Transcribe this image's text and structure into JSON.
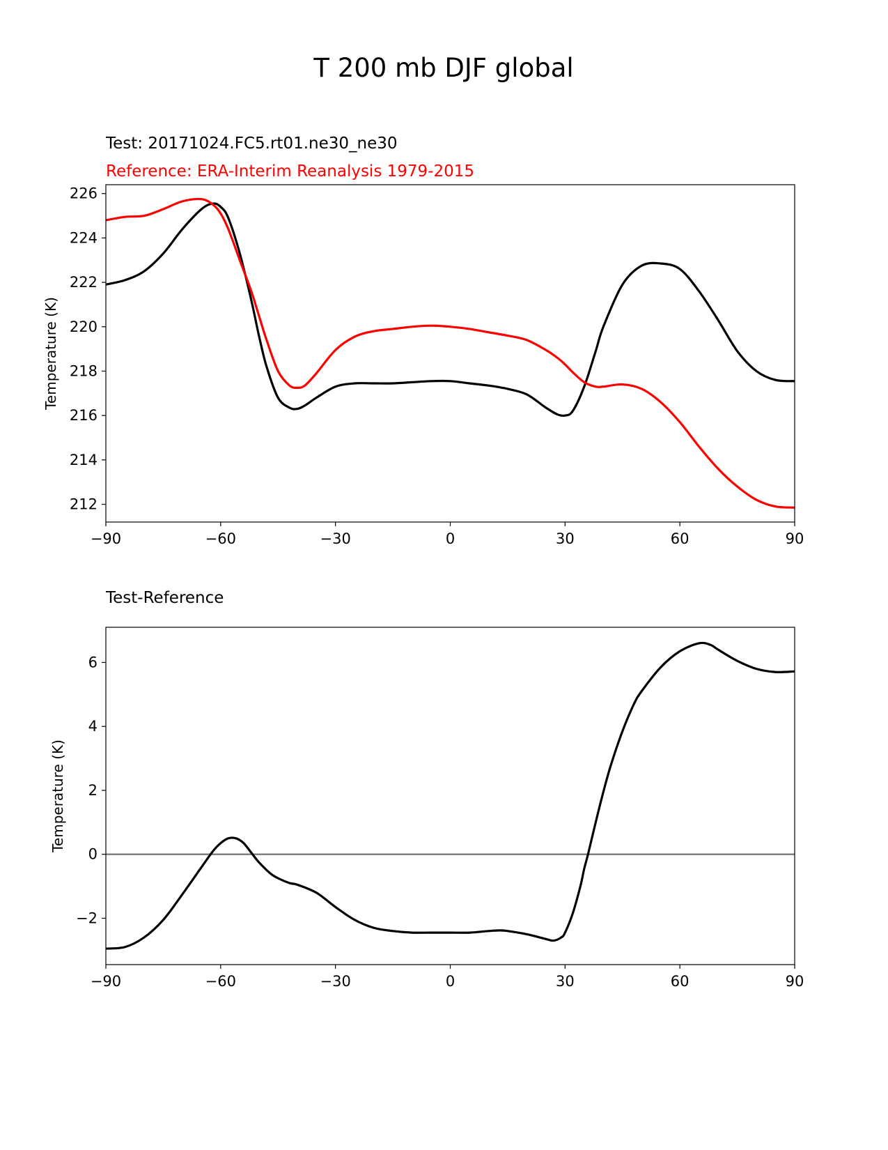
{
  "chart_data": [
    {
      "type": "line",
      "title": "T 200 mb DJF global",
      "test_label": "Test: 20171024.FC5.rt01.ne30_ne30",
      "reference_label": "Reference: ERA-Interim Reanalysis 1979-2015",
      "xlabel": "",
      "ylabel": "Temperature (K)",
      "xlim": [
        -90,
        90
      ],
      "ylim": [
        211.2,
        226.4
      ],
      "xticks": [
        -90,
        -60,
        -30,
        0,
        30,
        60,
        90
      ],
      "xtick_labels": [
        "−90",
        "−60",
        "−30",
        "0",
        "30",
        "60",
        "90"
      ],
      "yticks": [
        212,
        214,
        216,
        218,
        220,
        222,
        224,
        226
      ],
      "ytick_labels": [
        "212",
        "214",
        "216",
        "218",
        "220",
        "222",
        "224",
        "226"
      ],
      "series": [
        {
          "name": "Test",
          "color": "#000000",
          "x": [
            -90,
            -85,
            -80,
            -75,
            -70,
            -65,
            -62,
            -60,
            -58,
            -55,
            -52,
            -50,
            -48,
            -45,
            -42,
            -40,
            -38,
            -35,
            -30,
            -25,
            -20,
            -15,
            -10,
            -5,
            0,
            5,
            10,
            15,
            20,
            25,
            28,
            30,
            32,
            35,
            38,
            40,
            45,
            50,
            55,
            60,
            65,
            70,
            75,
            80,
            85,
            90
          ],
          "y": [
            221.9,
            222.1,
            222.5,
            223.3,
            224.4,
            225.3,
            225.55,
            225.4,
            224.9,
            223.3,
            221.2,
            219.6,
            218.2,
            216.8,
            216.35,
            216.3,
            216.45,
            216.8,
            217.3,
            217.45,
            217.45,
            217.45,
            217.5,
            217.55,
            217.55,
            217.45,
            217.35,
            217.2,
            216.95,
            216.35,
            216.05,
            216.0,
            216.2,
            217.3,
            218.9,
            220.0,
            221.9,
            222.75,
            222.85,
            222.6,
            221.6,
            220.3,
            218.9,
            218.0,
            217.6,
            217.55
          ]
        },
        {
          "name": "Reference",
          "color": "#ff0000",
          "x": [
            -90,
            -85,
            -80,
            -75,
            -70,
            -65,
            -62,
            -60,
            -58,
            -55,
            -52,
            -50,
            -48,
            -45,
            -42,
            -40,
            -38,
            -35,
            -30,
            -25,
            -20,
            -15,
            -10,
            -5,
            0,
            5,
            10,
            15,
            20,
            25,
            28,
            30,
            32,
            35,
            38,
            40,
            45,
            50,
            55,
            60,
            65,
            70,
            75,
            80,
            85,
            90
          ],
          "y": [
            224.8,
            224.95,
            225.0,
            225.3,
            225.65,
            225.75,
            225.5,
            225.1,
            224.4,
            223.0,
            221.6,
            220.5,
            219.4,
            218.0,
            217.35,
            217.25,
            217.35,
            217.9,
            218.95,
            219.55,
            219.8,
            219.9,
            220.0,
            220.05,
            220.0,
            219.9,
            219.75,
            219.6,
            219.4,
            218.95,
            218.6,
            218.3,
            217.95,
            217.5,
            217.3,
            217.3,
            217.4,
            217.2,
            216.6,
            215.7,
            214.6,
            213.6,
            212.8,
            212.2,
            211.9,
            211.85
          ]
        }
      ]
    },
    {
      "type": "line",
      "title": "Test-Reference",
      "xlabel": "",
      "ylabel": "Temperature (K)",
      "xlim": [
        -90,
        90
      ],
      "ylim": [
        -3.45,
        7.1
      ],
      "xticks": [
        -90,
        -60,
        -30,
        0,
        30,
        60,
        90
      ],
      "xtick_labels": [
        "−90",
        "−60",
        "−30",
        "0",
        "30",
        "60",
        "90"
      ],
      "yticks": [
        -2,
        0,
        2,
        4,
        6
      ],
      "ytick_labels": [
        "−2",
        "0",
        "2",
        "4",
        "6"
      ],
      "zero_line_color": "#808080",
      "series": [
        {
          "name": "Test-Reference",
          "color": "#000000",
          "x": [
            -90,
            -85,
            -80,
            -75,
            -70,
            -65,
            -62,
            -60,
            -58,
            -56,
            -54,
            -52,
            -50,
            -47,
            -45,
            -42,
            -40,
            -35,
            -30,
            -25,
            -20,
            -15,
            -10,
            -5,
            0,
            5,
            10,
            13,
            15,
            20,
            25,
            27,
            29,
            30,
            32,
            34,
            35,
            36,
            38,
            40,
            42,
            45,
            48,
            50,
            55,
            60,
            65,
            68,
            70,
            75,
            80,
            85,
            90
          ],
          "y": [
            -2.95,
            -2.9,
            -2.6,
            -2.05,
            -1.25,
            -0.4,
            0.1,
            0.35,
            0.5,
            0.5,
            0.35,
            0.05,
            -0.25,
            -0.6,
            -0.75,
            -0.9,
            -0.95,
            -1.2,
            -1.65,
            -2.05,
            -2.3,
            -2.4,
            -2.45,
            -2.45,
            -2.45,
            -2.45,
            -2.4,
            -2.38,
            -2.4,
            -2.5,
            -2.65,
            -2.7,
            -2.6,
            -2.45,
            -1.85,
            -1.0,
            -0.45,
            0.0,
            1.0,
            1.95,
            2.8,
            3.85,
            4.7,
            5.1,
            5.85,
            6.35,
            6.6,
            6.55,
            6.4,
            6.05,
            5.8,
            5.7,
            5.72
          ]
        }
      ]
    }
  ]
}
